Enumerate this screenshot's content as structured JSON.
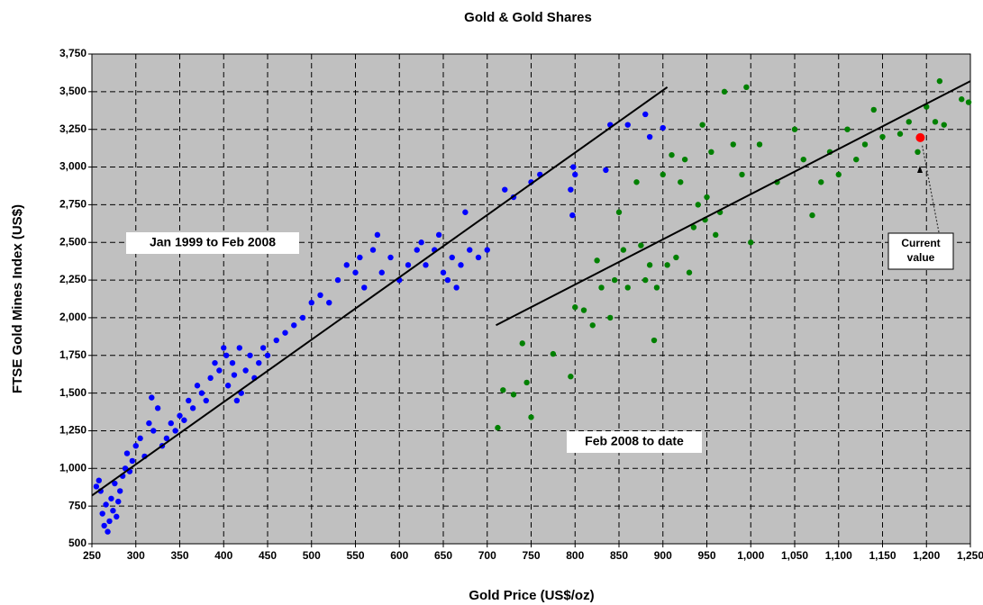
{
  "chart_data": {
    "type": "scatter",
    "title": "Gold & Gold Shares",
    "x_label": "Gold Price (US$/oz)",
    "y_label": "FTSE Gold Mines Index (US$)",
    "xlim": [
      250,
      1250
    ],
    "ylim": [
      500,
      3750
    ],
    "xticks": [
      250,
      300,
      350,
      400,
      450,
      500,
      550,
      600,
      650,
      700,
      750,
      800,
      850,
      900,
      950,
      {
        "value": 1000,
        "label": "1,000"
      },
      {
        "value": 1050,
        "label": "1,050"
      },
      {
        "value": 1100,
        "label": "1,100"
      },
      {
        "value": 1150,
        "label": "1,150"
      },
      {
        "value": 1200,
        "label": "1,200"
      },
      {
        "value": 1250,
        "label": "1,250"
      }
    ],
    "yticks": [
      500,
      750,
      {
        "value": 1000,
        "label": "1,000"
      },
      {
        "value": 1250,
        "label": "1,250"
      },
      {
        "value": 1500,
        "label": "1,500"
      },
      {
        "value": 1750,
        "label": "1,750"
      },
      {
        "value": 2000,
        "label": "2,000"
      },
      {
        "value": 2250,
        "label": "2,250"
      },
      {
        "value": 2500,
        "label": "2,500"
      },
      {
        "value": 2750,
        "label": "2,750"
      },
      {
        "value": 3000,
        "label": "3,000"
      },
      {
        "value": 3250,
        "label": "3,250"
      },
      {
        "value": 3500,
        "label": "3,500"
      },
      {
        "value": 3750,
        "label": "3,750"
      }
    ],
    "grid": true,
    "background": "#c0c0c0",
    "series": [
      {
        "color": "#0000ff",
        "x": [
          255,
          258,
          260,
          262,
          264,
          266,
          268,
          270,
          272,
          274,
          276,
          278,
          280,
          282,
          285,
          288,
          290,
          293,
          296,
          300,
          305,
          310,
          315,
          318,
          320,
          325,
          330,
          335,
          340,
          345,
          350,
          355,
          360,
          365,
          370,
          375,
          380,
          385,
          390,
          395,
          400,
          403,
          405,
          410,
          412,
          415,
          418,
          420,
          425,
          430,
          435,
          440,
          445,
          450,
          460,
          470,
          480,
          490,
          500,
          510,
          520,
          530,
          540,
          550,
          555,
          560,
          570,
          575,
          580,
          590,
          600,
          610,
          620,
          625,
          630,
          640,
          645,
          650,
          655,
          660,
          665,
          670,
          675,
          680,
          690,
          700,
          720,
          730,
          750,
          760,
          795,
          798,
          800,
          797,
          835,
          840,
          860,
          880,
          885,
          900
        ],
        "values": [
          880,
          920,
          850,
          700,
          620,
          760,
          580,
          650,
          800,
          720,
          900,
          680,
          780,
          850,
          950,
          1000,
          1100,
          980,
          1050,
          1150,
          1200,
          1080,
          1300,
          1470,
          1250,
          1400,
          1150,
          1200,
          1300,
          1250,
          1350,
          1320,
          1450,
          1400,
          1550,
          1500,
          1450,
          1600,
          1700,
          1650,
          1800,
          1750,
          1550,
          1700,
          1620,
          1450,
          1800,
          1500,
          1650,
          1750,
          1600,
          1700,
          1800,
          1750,
          1850,
          1900,
          1950,
          2000,
          2100,
          2150,
          2100,
          2250,
          2350,
          2300,
          2400,
          2200,
          2450,
          2550,
          2300,
          2400,
          2250,
          2350,
          2450,
          2500,
          2350,
          2450,
          2550,
          2300,
          2250,
          2400,
          2200,
          2350,
          2700,
          2450,
          2400,
          2450,
          2850,
          2800,
          2900,
          2950,
          2850,
          3000,
          2950,
          2680,
          2980,
          3280,
          3280,
          3350,
          3200,
          3260
        ]
      },
      {
        "color": "#008000",
        "x": [
          712,
          718,
          730,
          740,
          745,
          750,
          775,
          795,
          800,
          810,
          820,
          825,
          830,
          840,
          845,
          850,
          855,
          860,
          870,
          875,
          880,
          885,
          890,
          893,
          900,
          905,
          910,
          915,
          920,
          925,
          930,
          935,
          940,
          945,
          948,
          950,
          955,
          960,
          965,
          970,
          980,
          990,
          995,
          1000,
          1010,
          1030,
          1050,
          1060,
          1070,
          1080,
          1090,
          1100,
          1110,
          1120,
          1130,
          1140,
          1150,
          1170,
          1180,
          1190,
          1200,
          1210,
          1215,
          1220,
          1240,
          1248
        ],
        "values": [
          1270,
          1520,
          1490,
          1830,
          1570,
          1340,
          1760,
          1610,
          2070,
          2050,
          1950,
          2380,
          2200,
          2000,
          2250,
          2700,
          2450,
          2200,
          2900,
          2480,
          2250,
          2350,
          1850,
          2200,
          2950,
          2350,
          3080,
          2400,
          2900,
          3050,
          2300,
          2600,
          2750,
          3280,
          2650,
          2800,
          3100,
          2550,
          2700,
          3500,
          3150,
          2950,
          3530,
          2500,
          3150,
          2900,
          3250,
          3050,
          2680,
          2900,
          3100,
          2950,
          3250,
          3050,
          3150,
          3380,
          3200,
          3220,
          3300,
          3100,
          3400,
          3300,
          3570,
          3280,
          3450,
          3430
        ]
      },
      {
        "color": "#ff0000",
        "x": [
          1193
        ],
        "values": [
          3195
        ]
      }
    ],
    "trendlines": [
      {
        "x": [
          250,
          905
        ],
        "values": [
          820,
          3530
        ]
      },
      {
        "x": [
          710,
          1250
        ],
        "values": [
          1950,
          3570
        ]
      }
    ],
    "annotations": [
      {
        "text": [
          "Jan 1999 to Feb 2008"
        ],
        "color": "#2020e0"
      },
      {
        "text": [
          "Feb 2008 to date"
        ],
        "color": "#008000"
      },
      {
        "text": [
          "Current",
          "value"
        ],
        "color": "#000000"
      }
    ]
  }
}
